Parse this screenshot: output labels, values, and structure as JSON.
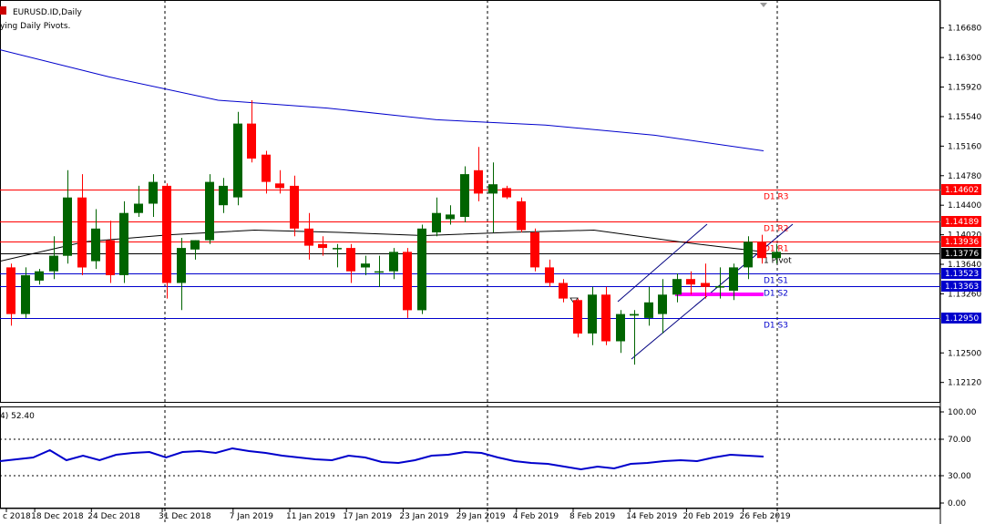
{
  "header": {
    "symbol_label": "EURUSD.ID,Daily",
    "indicator_label": "ying Daily Pivots."
  },
  "rsi": {
    "label": "4) 52.40",
    "ylim": [
      0,
      100
    ],
    "levels": [
      100.0,
      70.0,
      30.0,
      0.0
    ],
    "level_labels": [
      "100.00",
      "70.00",
      "30.00",
      "0.00"
    ]
  },
  "price_axis": {
    "labels": [
      "1.16680",
      "1.16300",
      "1.15920",
      "1.15540",
      "1.15160",
      "1.14780",
      "1.14400",
      "1.14020",
      "1.13640",
      "1.13260",
      "1.12500",
      "1.12120"
    ]
  },
  "date_axis": {
    "labels": [
      "c 2018",
      "18 Dec 2018",
      "24 Dec 2018",
      "31 Dec 2018",
      "7 Jan 2019",
      "11 Jan 2019",
      "17 Jan 2019",
      "23 Jan 2019",
      "29 Jan 2019",
      "4 Feb 2019",
      "8 Feb 2019",
      "14 Feb 2019",
      "20 Feb 2019",
      "26 Feb 2019"
    ]
  },
  "pivots": [
    {
      "name": "R3",
      "label": "D1 R3",
      "value": 1.14602,
      "tag": "1.14602",
      "color": "#ff0000"
    },
    {
      "name": "R2",
      "label": "D1 R2",
      "value": 1.14189,
      "tag": "1.14189",
      "color": "#ff0000"
    },
    {
      "name": "R1",
      "label": "D1 R1",
      "value": 1.13936,
      "tag": "1.13936",
      "color": "#ff0000"
    },
    {
      "name": "Pivot",
      "label": "1 Pivot",
      "value": 1.13776,
      "tag": "1.13776",
      "color": "#000000"
    },
    {
      "name": "S1",
      "label": "D1 S1",
      "value": 1.13523,
      "tag": "1.13523",
      "color": "#0000cc"
    },
    {
      "name": "S2",
      "label": "D1 S2",
      "value": 1.13363,
      "tag": "1.13363",
      "color": "#0000cc"
    },
    {
      "name": "S3",
      "label": "D1 S3",
      "value": 1.1295,
      "tag": "1.12950",
      "color": "#0000cc"
    }
  ],
  "colors": {
    "bull": "#006400",
    "bear": "#ff0000",
    "ma_long": "#0000cc",
    "ma_short": "#000000",
    "rsi_line": "#0000cc",
    "channel": "#000080",
    "highlight": "#ff00ff"
  },
  "chart_data": {
    "type": "candlestick",
    "ylim": [
      1.1187,
      1.1704
    ],
    "date_ticks_index": [
      0,
      2,
      6,
      11,
      16,
      20,
      24,
      28,
      32,
      36,
      40,
      44,
      48,
      52
    ],
    "candles": [
      {
        "o": 1.136,
        "h": 1.1365,
        "l": 1.1285,
        "c": 1.13
      },
      {
        "o": 1.13,
        "h": 1.136,
        "l": 1.1295,
        "c": 1.135
      },
      {
        "o": 1.1343,
        "h": 1.1358,
        "l": 1.1338,
        "c": 1.1355
      },
      {
        "o": 1.1355,
        "h": 1.14,
        "l": 1.1345,
        "c": 1.1375
      },
      {
        "o": 1.1375,
        "h": 1.1485,
        "l": 1.1365,
        "c": 1.145
      },
      {
        "o": 1.145,
        "h": 1.148,
        "l": 1.135,
        "c": 1.136
      },
      {
        "o": 1.1368,
        "h": 1.1435,
        "l": 1.1358,
        "c": 1.141
      },
      {
        "o": 1.1395,
        "h": 1.142,
        "l": 1.134,
        "c": 1.135
      },
      {
        "o": 1.135,
        "h": 1.1445,
        "l": 1.134,
        "c": 1.143
      },
      {
        "o": 1.143,
        "h": 1.1465,
        "l": 1.1425,
        "c": 1.1442
      },
      {
        "o": 1.1442,
        "h": 1.148,
        "l": 1.1425,
        "c": 1.147
      },
      {
        "o": 1.1465,
        "h": 1.1468,
        "l": 1.132,
        "c": 1.134
      },
      {
        "o": 1.134,
        "h": 1.1398,
        "l": 1.1305,
        "c": 1.1385
      },
      {
        "o": 1.1383,
        "h": 1.1395,
        "l": 1.137,
        "c": 1.1395
      },
      {
        "o": 1.1395,
        "h": 1.148,
        "l": 1.139,
        "c": 1.147
      },
      {
        "o": 1.144,
        "h": 1.1475,
        "l": 1.143,
        "c": 1.1465
      },
      {
        "o": 1.145,
        "h": 1.156,
        "l": 1.144,
        "c": 1.1545
      },
      {
        "o": 1.1545,
        "h": 1.1575,
        "l": 1.1495,
        "c": 1.15
      },
      {
        "o": 1.1505,
        "h": 1.151,
        "l": 1.1455,
        "c": 1.147
      },
      {
        "o": 1.1468,
        "h": 1.1485,
        "l": 1.1455,
        "c": 1.1462
      },
      {
        "o": 1.1465,
        "h": 1.1478,
        "l": 1.14,
        "c": 1.141
      },
      {
        "o": 1.141,
        "h": 1.143,
        "l": 1.137,
        "c": 1.1388
      },
      {
        "o": 1.139,
        "h": 1.14,
        "l": 1.1375,
        "c": 1.1385
      },
      {
        "o": 1.1385,
        "h": 1.139,
        "l": 1.136,
        "c": 1.1385
      },
      {
        "o": 1.1385,
        "h": 1.139,
        "l": 1.134,
        "c": 1.1355
      },
      {
        "o": 1.136,
        "h": 1.1375,
        "l": 1.135,
        "c": 1.1365
      },
      {
        "o": 1.1355,
        "h": 1.1375,
        "l": 1.1335,
        "c": 1.1355
      },
      {
        "o": 1.1355,
        "h": 1.1385,
        "l": 1.1345,
        "c": 1.138
      },
      {
        "o": 1.138,
        "h": 1.1385,
        "l": 1.1295,
        "c": 1.1305
      },
      {
        "o": 1.1305,
        "h": 1.1415,
        "l": 1.13,
        "c": 1.141
      },
      {
        "o": 1.1405,
        "h": 1.145,
        "l": 1.14,
        "c": 1.143
      },
      {
        "o": 1.1422,
        "h": 1.144,
        "l": 1.1415,
        "c": 1.1428
      },
      {
        "o": 1.1425,
        "h": 1.149,
        "l": 1.1418,
        "c": 1.148
      },
      {
        "o": 1.1485,
        "h": 1.1515,
        "l": 1.1445,
        "c": 1.1455
      },
      {
        "o": 1.1455,
        "h": 1.1495,
        "l": 1.1405,
        "c": 1.1467
      },
      {
        "o": 1.1462,
        "h": 1.1465,
        "l": 1.1448,
        "c": 1.145
      },
      {
        "o": 1.1445,
        "h": 1.145,
        "l": 1.1405,
        "c": 1.1408
      },
      {
        "o": 1.1405,
        "h": 1.141,
        "l": 1.1355,
        "c": 1.136
      },
      {
        "o": 1.136,
        "h": 1.137,
        "l": 1.1335,
        "c": 1.134
      },
      {
        "o": 1.134,
        "h": 1.1345,
        "l": 1.1315,
        "c": 1.132
      },
      {
        "o": 1.1318,
        "h": 1.132,
        "l": 1.127,
        "c": 1.1275
      },
      {
        "o": 1.1275,
        "h": 1.1335,
        "l": 1.126,
        "c": 1.1325
      },
      {
        "o": 1.1325,
        "h": 1.1335,
        "l": 1.126,
        "c": 1.1265
      },
      {
        "o": 1.1265,
        "h": 1.1305,
        "l": 1.125,
        "c": 1.13
      },
      {
        "o": 1.1298,
        "h": 1.1305,
        "l": 1.1235,
        "c": 1.13
      },
      {
        "o": 1.1295,
        "h": 1.1335,
        "l": 1.1285,
        "c": 1.1315
      },
      {
        "o": 1.13,
        "h": 1.1345,
        "l": 1.1275,
        "c": 1.1325
      },
      {
        "o": 1.1325,
        "h": 1.1352,
        "l": 1.1315,
        "c": 1.1345
      },
      {
        "o": 1.1345,
        "h": 1.1355,
        "l": 1.1325,
        "c": 1.1338
      },
      {
        "o": 1.134,
        "h": 1.1365,
        "l": 1.132,
        "c": 1.1335
      },
      {
        "o": 1.1334,
        "h": 1.136,
        "l": 1.132,
        "c": 1.1336
      },
      {
        "o": 1.133,
        "h": 1.1365,
        "l": 1.1318,
        "c": 1.136
      },
      {
        "o": 1.136,
        "h": 1.14,
        "l": 1.1345,
        "c": 1.1393
      },
      {
        "o": 1.1393,
        "h": 1.1402,
        "l": 1.1365,
        "c": 1.1372
      },
      {
        "o": 1.1372,
        "h": 1.139,
        "l": 1.1365,
        "c": 1.138
      }
    ],
    "ma_long": [
      1.164,
      1.1605,
      1.1575,
      1.1565,
      1.155,
      1.1543,
      1.153,
      1.151
    ],
    "ma_short": [
      1.1368,
      1.1393,
      1.1402,
      1.1408,
      1.1405,
      1.1401,
      1.1405,
      1.1408,
      1.1393,
      1.138
    ],
    "rsi_values": [
      46,
      48,
      50,
      58,
      47,
      52,
      47,
      53,
      55,
      56,
      50,
      56,
      57,
      55,
      60,
      57,
      55,
      52,
      50,
      48,
      47,
      52,
      50,
      45,
      44,
      47,
      52,
      53,
      56,
      55,
      50,
      46,
      44,
      43,
      40,
      37,
      40,
      38,
      43,
      44,
      46,
      47,
      46,
      50,
      53,
      52,
      51
    ]
  }
}
